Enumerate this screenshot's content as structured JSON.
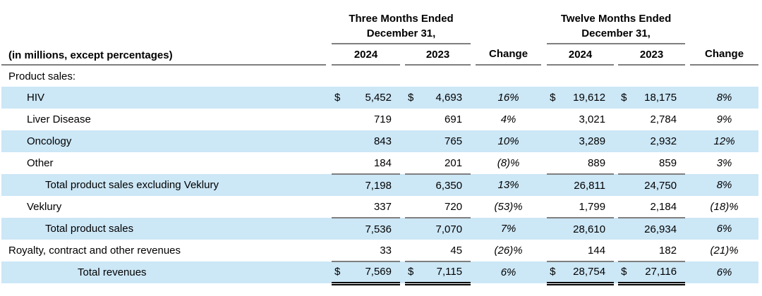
{
  "colors": {
    "stripe_blue": "#cce7f6",
    "rule_gray": "#7f7f7f",
    "strong_black": "#000000"
  },
  "table": {
    "label_header": "(in millions, except percentages)",
    "col_groups": [
      {
        "line1": "Three Months Ended",
        "line2": "December 31,"
      },
      {
        "line1": "Twelve Months Ended",
        "line2": "December 31,"
      }
    ],
    "year_headers": [
      "2024",
      "2023"
    ],
    "change_header": "Change",
    "rows": [
      {
        "label": "Product sales:",
        "indent": 0,
        "shaded": false,
        "dollar": false,
        "underline": "none",
        "values": [
          "",
          "",
          "",
          "",
          "",
          ""
        ]
      },
      {
        "label": "HIV",
        "indent": 1,
        "shaded": true,
        "dollar": true,
        "underline": "none",
        "values": [
          "5,452",
          "4,693",
          "16%",
          "19,612",
          "18,175",
          "8%"
        ]
      },
      {
        "label": "Liver Disease",
        "indent": 1,
        "shaded": false,
        "dollar": false,
        "underline": "none",
        "values": [
          "719",
          "691",
          "4%",
          "3,021",
          "2,784",
          "9%"
        ]
      },
      {
        "label": "Oncology",
        "indent": 1,
        "shaded": true,
        "dollar": false,
        "underline": "none",
        "values": [
          "843",
          "765",
          "10%",
          "3,289",
          "2,932",
          "12%"
        ]
      },
      {
        "label": "Other",
        "indent": 1,
        "shaded": false,
        "dollar": false,
        "underline": "single",
        "values": [
          "184",
          "201",
          "(8)%",
          "889",
          "859",
          "3%"
        ]
      },
      {
        "label": "Total product sales excluding Veklury",
        "indent": 2,
        "shaded": true,
        "dollar": false,
        "underline": "none",
        "values": [
          "7,198",
          "6,350",
          "13%",
          "26,811",
          "24,750",
          "8%"
        ]
      },
      {
        "label": "Veklury",
        "indent": 1,
        "shaded": false,
        "dollar": false,
        "underline": "single",
        "values": [
          "337",
          "720",
          "(53)%",
          "1,799",
          "2,184",
          "(18)%"
        ]
      },
      {
        "label": "Total product sales",
        "indent": 2,
        "shaded": true,
        "dollar": false,
        "underline": "none",
        "values": [
          "7,536",
          "7,070",
          "7%",
          "28,610",
          "26,934",
          "6%"
        ]
      },
      {
        "label": "Royalty, contract and other revenues",
        "indent": 0,
        "shaded": false,
        "dollar": false,
        "underline": "single",
        "values": [
          "33",
          "45",
          "(26)%",
          "144",
          "182",
          "(21)%"
        ]
      },
      {
        "label": "Total revenues",
        "indent": 3,
        "shaded": true,
        "dollar": true,
        "underline": "double",
        "values": [
          "7,569",
          "7,115",
          "6%",
          "28,754",
          "27,116",
          "6%"
        ]
      }
    ]
  }
}
